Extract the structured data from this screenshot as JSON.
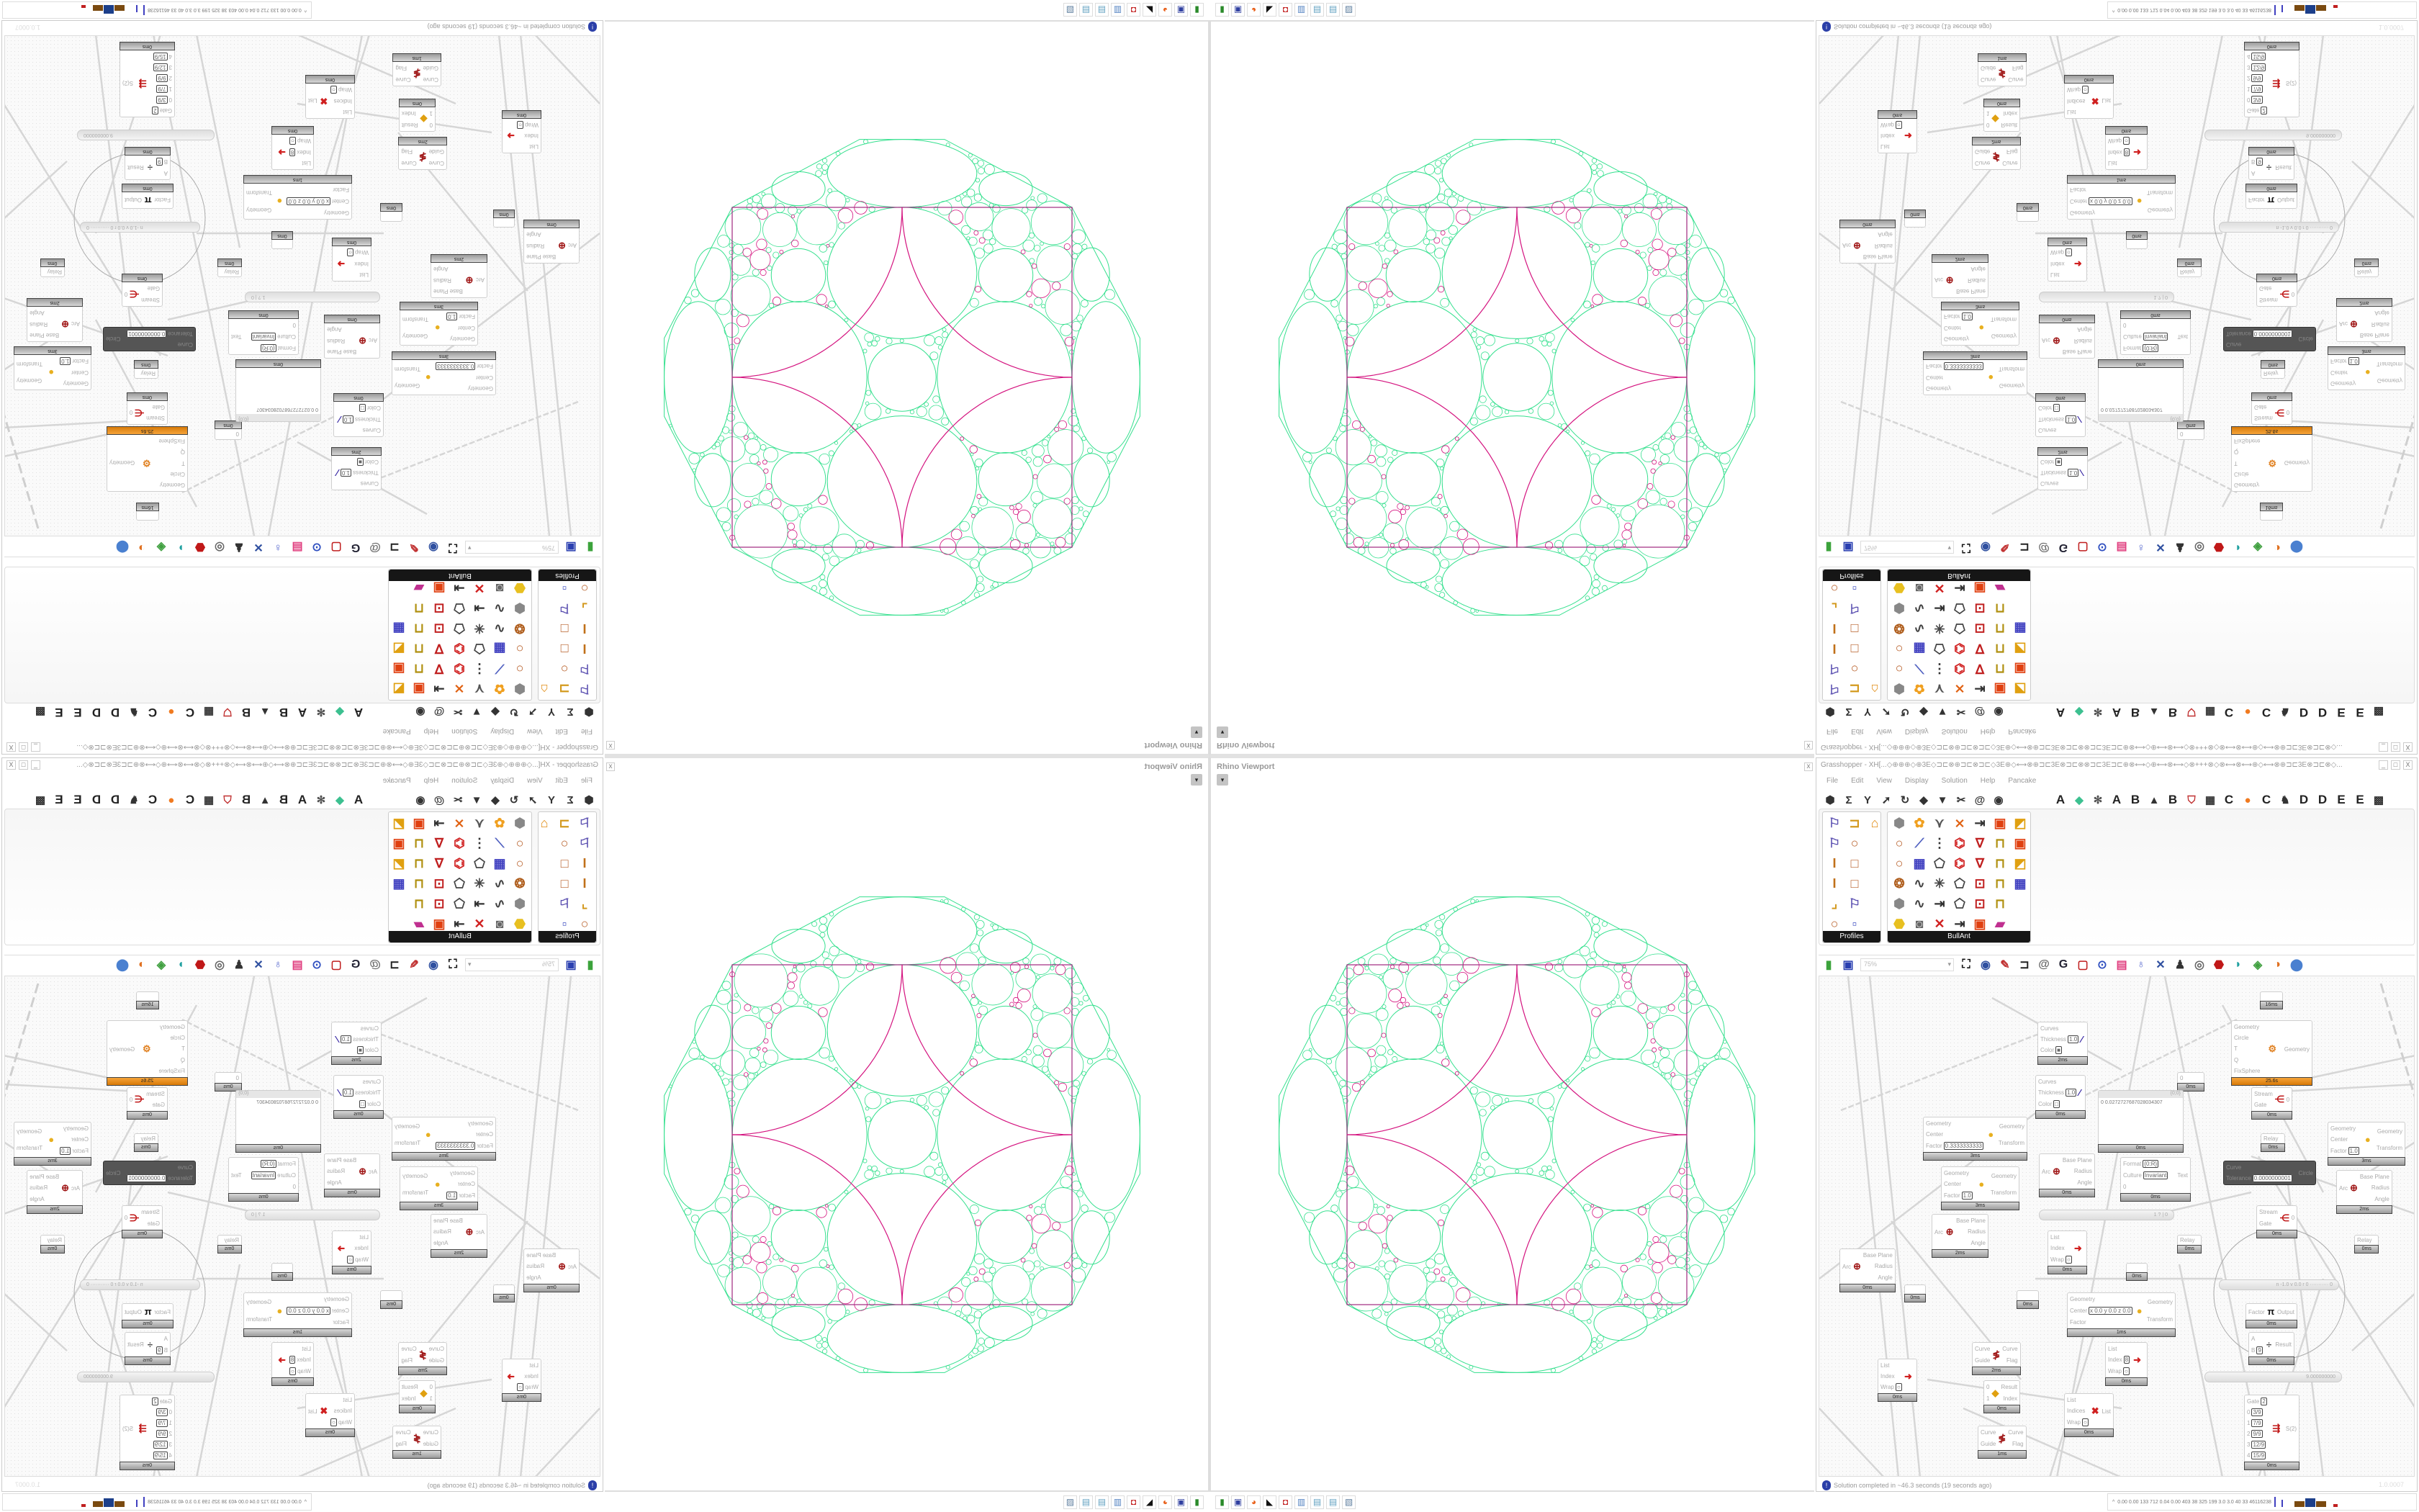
{
  "rhino": {
    "viewport_title": "Rhino Viewport",
    "dropdown_glyph": "▾",
    "close_label": "x",
    "fractal_colors": {
      "circles": "#35e08e",
      "arcs": "#d4137f",
      "square": "#a0287f"
    }
  },
  "taskbar": {
    "icons": [
      "downloader-icon",
      "floppy-64-icon",
      "firefox-icon",
      "inkscape-icon",
      "red-app-icon",
      "calculator-icon",
      "notepad-icon",
      "notepad-icon",
      "file-viewer-icon"
    ]
  },
  "gh": {
    "title": "Grasshopper - XH[...◇⊕⊕⊕◇⊕3E◇⊐⊏⊗⊕⊐⊏⊗⊐⊏◇3E⊕◇⟷⊗⊕⊐⊏3E⊗⊐⊏⊗⊗⊐⊏3E⊐⊏⊕⊗⟷◇⊕⟷⊗⟷◇⊗+++⊗◇⊗⟷⊗⟷⊕◇⟷⊗⊕⊐⊏3E⊗⊐⊏⊗◇...",
    "window_buttons": [
      "_",
      "□",
      "X"
    ],
    "menu": [
      "File",
      "Edit",
      "View",
      "Display",
      "Solution",
      "Help",
      "Pancake"
    ],
    "tabs_left": [
      "hexagon-icon",
      "sigma-icon",
      "vector-icon",
      "arrow-icon",
      "hook-icon",
      "surface-icon",
      "triangle-icon",
      "intersect-icon",
      "spiral-icon",
      "eye-icon"
    ],
    "tabs_right": [
      {
        "text": "A"
      },
      {
        "icon": "crystal-icon"
      },
      {
        "icon": "gear-skull-icon"
      },
      {
        "text": "A"
      },
      {
        "text": "B"
      },
      {
        "icon": "mountain-icon"
      },
      {
        "text": "B"
      },
      {
        "icon": "shield-icon"
      },
      {
        "icon": "grid-icon"
      },
      {
        "text": "C"
      },
      {
        "icon": "orange-dot-icon"
      },
      {
        "text": "C"
      },
      {
        "icon": "rooster-icon"
      },
      {
        "text": "D"
      },
      {
        "text": "D"
      },
      {
        "text": "E"
      },
      {
        "text": "E"
      },
      {
        "icon": "panel-grid-icon"
      }
    ],
    "palettes": [
      {
        "label": "Profiles",
        "icons": [
          "profile-tag",
          "channel",
          "house",
          "profile-tag",
          "ring",
          "",
          "i-beam",
          "rect-frame",
          "",
          "i-beam",
          "rect-frame",
          "",
          "angle",
          "profile-tag",
          "",
          "ring",
          "small-squares",
          ""
        ]
      },
      {
        "label": "BullAnt",
        "icons": [
          "solid",
          "flower",
          "nodes",
          "cross-tri",
          "ladder-arrow",
          "box-red",
          "chart",
          "ring",
          "leaf",
          "ladder",
          "cross-poly",
          "v-nodes",
          "lock",
          "box-red",
          "ring",
          "cube",
          "polygon",
          "cross-poly",
          "v-nodes",
          "lock",
          "chart",
          "flower-ring",
          "curve",
          "star-nodes",
          "polygon",
          "frame-red",
          "lock",
          "cube",
          "solid",
          "curve",
          "ladder-arrow",
          "polygon",
          "frame-red",
          "lock",
          "",
          "bulb",
          "picture",
          "cross-red",
          "ladder-arrow",
          "box-red",
          "rainbow",
          ""
        ]
      }
    ],
    "toolbar": {
      "left_icons": [
        "open-file-icon",
        "save-icon"
      ],
      "zoom_value": "75%",
      "zoom_dropdown": "▾",
      "right_icons": [
        "zoom-extents-icon",
        "preview-eye-icon",
        "sketch-icon",
        "bake-icon",
        "at-icon",
        "gha-icon",
        "window-icon",
        "search-icon",
        "package-icon",
        "bulb-icon",
        "wires-icon",
        "pawn-icon",
        "ring-icon",
        "red-gem-icon",
        "teal-shape-icon",
        "green-shape-icon",
        "half-sphere-icon",
        "blue-sphere-icon"
      ]
    },
    "status": {
      "icon": "!",
      "message": "Solution completed in ~46.3 seconds (19 seconds ago)",
      "version": "1.0.0007"
    }
  },
  "canvas": {
    "nodes": [
      {
        "kind": "std",
        "icon": "custom-preview-icon",
        "inputs": [
          [
            "Curves"
          ],
          [
            "Thickness",
            "1.0"
          ],
          [
            "Color",
            "■"
          ]
        ],
        "outputs": [],
        "time": "2ms"
      },
      {
        "kind": "std",
        "icon": "custom-preview-icon",
        "inputs": [
          [
            "Curves"
          ],
          [
            "Thickness",
            "1.0"
          ],
          [
            "Color",
            "□"
          ]
        ],
        "outputs": [],
        "time": "0ms"
      },
      {
        "kind": "std",
        "icon": "kangaroo-solver-icon",
        "inputs": [
          [
            "Geometry"
          ],
          [
            "Circle"
          ],
          [
            "T"
          ],
          [
            "Q"
          ],
          [
            "FixSphere"
          ]
        ],
        "outputs": [
          [
            "Geometry"
          ]
        ],
        "time": "25.6s",
        "orange": true
      },
      {
        "kind": "std",
        "inputs": [
          [
            "0"
          ]
        ],
        "outputs": [],
        "time": "0ms"
      },
      {
        "kind": "panel",
        "header": "{0;0}",
        "text": "0  0.0272727687028034307",
        "time": "0ms"
      },
      {
        "kind": "std",
        "icon": "stream-gate-icon",
        "inputs": [
          [
            "Stream"
          ],
          [
            "Gate"
          ]
        ],
        "outputs": [
          [
            "0"
          ]
        ],
        "time": "0ms"
      },
      {
        "kind": "std",
        "inputs": [
          [
            "Relay"
          ]
        ],
        "outputs": [],
        "time": "0ms"
      },
      {
        "kind": "std",
        "icon": "scale-icon",
        "inputs": [
          [
            "Geometry"
          ],
          [
            "Center"
          ],
          [
            "Factor",
            "0.3333333333"
          ]
        ],
        "outputs": [
          [
            "Geometry"
          ],
          [
            "Transform"
          ]
        ],
        "time": "3ms"
      },
      {
        "kind": "std",
        "icon": "scale-icon",
        "inputs": [
          [
            "Geometry"
          ],
          [
            "Center"
          ],
          [
            "Factor",
            "1.0"
          ]
        ],
        "outputs": [
          [
            "Geometry"
          ],
          [
            "Transform"
          ]
        ],
        "time": "3ms"
      },
      {
        "kind": "std",
        "icon": "arc-icon",
        "inputs": [
          [
            "Arc"
          ]
        ],
        "outputs": [
          [
            "Base Plane"
          ],
          [
            "Radius"
          ],
          [
            "Angle"
          ]
        ],
        "time": "0ms"
      },
      {
        "kind": "std",
        "inputs": [
          [
            "Format",
            "{0:R}"
          ],
          [
            "Culture",
            "Invariant"
          ],
          [
            "0"
          ]
        ],
        "outputs": [
          [
            "Text"
          ]
        ],
        "time": "0ms"
      },
      {
        "kind": "dark",
        "inputs": [
          [
            "Curve"
          ],
          [
            "Tolerance",
            "0.0000000001"
          ]
        ],
        "outputs": [
          [
            "Circle"
          ]
        ]
      },
      {
        "kind": "std",
        "icon": "scale-icon",
        "inputs": [
          [
            "Geometry"
          ],
          [
            "Center"
          ],
          [
            "Factor",
            "1.0"
          ]
        ],
        "outputs": [
          [
            "Geometry"
          ],
          [
            "Transform"
          ]
        ],
        "time": "3ms"
      },
      {
        "kind": "std",
        "icon": "arc-icon",
        "inputs": [
          [
            "Arc"
          ]
        ],
        "outputs": [
          [
            "Base Plane"
          ],
          [
            "Radius"
          ],
          [
            "Angle"
          ]
        ],
        "time": "2ms"
      },
      {
        "kind": "slider",
        "text": "1 ? | 0"
      },
      {
        "kind": "std",
        "icon": "stream-gate-icon",
        "inputs": [
          [
            "Stream"
          ],
          [
            "Gate"
          ]
        ],
        "outputs": [
          [
            "0"
          ]
        ],
        "time": "0ms"
      },
      {
        "kind": "std",
        "icon": "arc-icon",
        "inputs": [
          [
            "Arc"
          ]
        ],
        "outputs": [
          [
            "Base Plane"
          ],
          [
            "Radius"
          ],
          [
            "Angle"
          ]
        ],
        "time": "0ms"
      },
      {
        "kind": "std",
        "icon": "list-item-icon",
        "inputs": [
          [
            "List"
          ],
          [
            "Index"
          ],
          [
            "Wrap",
            "○"
          ]
        ],
        "outputs": [],
        "time": "0ms"
      },
      {
        "kind": "std",
        "inputs": [],
        "outputs": [],
        "time": "0ms"
      },
      {
        "kind": "std",
        "inputs": [],
        "outputs": [],
        "time": "0ms"
      },
      {
        "kind": "std",
        "inputs": [],
        "outputs": [],
        "time": "0ms"
      },
      {
        "kind": "std",
        "icon": "scale-icon",
        "inputs": [
          [
            "Geometry"
          ],
          [
            "Center",
            "x 0.0 y 0.0 z 0.0"
          ],
          [
            "Factor"
          ]
        ],
        "outputs": [
          [
            "Geometry"
          ],
          [
            "Transform"
          ]
        ],
        "time": "1ms"
      },
      {
        "kind": "slider",
        "text": "n -1.0 v 0.0 r 0  ··········· 0"
      },
      {
        "kind": "std",
        "icon": "pi-icon",
        "inputs": [
          [
            "Factor"
          ]
        ],
        "outputs": [
          [
            "Output"
          ]
        ],
        "time": "0ms"
      },
      {
        "kind": "std",
        "icon": "division-icon",
        "inputs": [
          [
            "A"
          ],
          [
            "B",
            "9"
          ]
        ],
        "outputs": [
          [
            "Result"
          ]
        ],
        "time": "0ms"
      },
      {
        "kind": "slider",
        "text": "9.000000000"
      },
      {
        "kind": "std",
        "icon": "stream-filter-icon",
        "inputs": [
          [
            "Gate",
            "2"
          ],
          [
            "0",
            "3/9"
          ],
          [
            "1",
            "7/9"
          ],
          [
            "2",
            "9/9"
          ],
          [
            "3",
            "12/9"
          ],
          [
            "4",
            "15/9"
          ]
        ],
        "outputs": [
          [
            "S(2)"
          ]
        ],
        "time": "0ms"
      },
      {
        "kind": "std",
        "icon": "flip-curve-icon",
        "inputs": [
          [
            "Curve"
          ],
          [
            "Guide"
          ]
        ],
        "outputs": [
          [
            "Curve"
          ],
          [
            "Flag"
          ]
        ],
        "time": "2ms"
      },
      {
        "kind": "std",
        "icon": "list-item-icon",
        "inputs": [
          [
            "List"
          ],
          [
            "Index",
            "8"
          ],
          [
            "Wrap",
            "○"
          ]
        ],
        "outputs": [],
        "time": "0ms"
      },
      {
        "kind": "std",
        "icon": "list-item-icon",
        "inputs": [
          [
            "List"
          ],
          [
            "Index"
          ],
          [
            "Wrap",
            "○"
          ]
        ],
        "outputs": [],
        "time": "0ms"
      },
      {
        "kind": "std",
        "icon": "pick-icon",
        "inputs": [
          [
            "0"
          ],
          [
            "1"
          ]
        ],
        "outputs": [
          [
            "Result"
          ],
          [
            "Index"
          ]
        ],
        "time": "0ms"
      },
      {
        "kind": "std",
        "icon": "cull-index-icon",
        "inputs": [
          [
            "List"
          ],
          [
            "Indices"
          ],
          [
            "Wrap",
            "○"
          ]
        ],
        "outputs": [
          [
            "List"
          ]
        ],
        "time": "0ms"
      },
      {
        "kind": "std",
        "icon": "flip-curve-icon",
        "inputs": [
          [
            "Curve"
          ],
          [
            "Guide"
          ]
        ],
        "outputs": [
          [
            "Curve"
          ],
          [
            "Flag"
          ]
        ],
        "time": "1ms"
      },
      {
        "kind": "std",
        "inputs": [],
        "outputs": [],
        "time": "16ms"
      },
      {
        "kind": "std",
        "inputs": [
          [
            "Relay"
          ]
        ],
        "outputs": [],
        "time": "0ms"
      },
      {
        "kind": "std",
        "inputs": [
          [
            "Relay"
          ]
        ],
        "outputs": [],
        "time": "0ms"
      },
      {
        "kind": "std",
        "icon": "arc-icon",
        "inputs": [
          [
            "Arc"
          ]
        ],
        "outputs": [
          [
            "Base Plane"
          ],
          [
            "Radius"
          ],
          [
            "Angle"
          ]
        ],
        "time": "2ms"
      }
    ]
  },
  "readout": {
    "values": "0.00 0.00 133 712 0.04 0.00 403 38 325 199 3.0 3.0 40 33 46116238",
    "expand_glyph": "^"
  }
}
